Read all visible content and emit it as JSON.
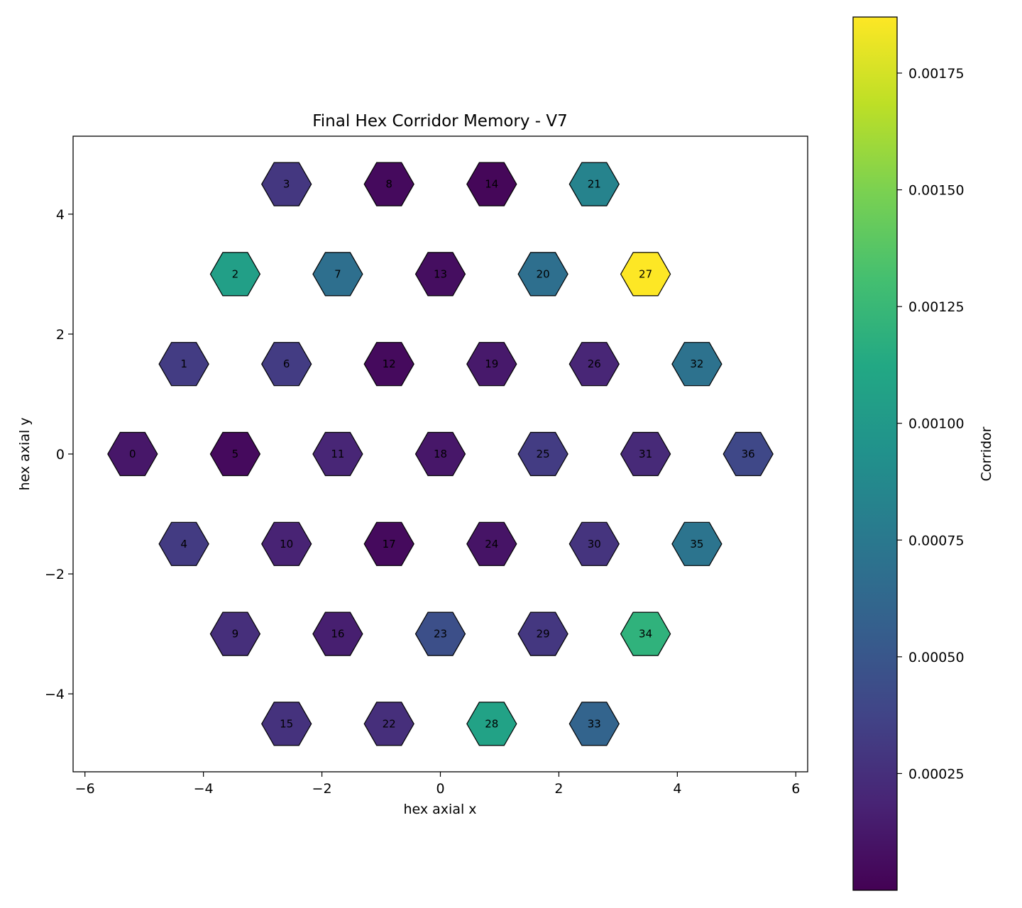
{
  "chart_data": {
    "type": "heatmap",
    "title": "Final Hex Corridor Memory - V7",
    "xlabel": "hex axial x",
    "ylabel": "hex axial y",
    "xlim": [
      -6.2,
      6.2
    ],
    "ylim": [
      -5.3,
      5.3
    ],
    "xticks": [
      -6,
      -4,
      -2,
      0,
      2,
      4,
      6
    ],
    "yticks": [
      -4,
      -2,
      0,
      2,
      4
    ],
    "xtick_labels": [
      "−6",
      "−4",
      "−2",
      "0",
      "2",
      "4",
      "6"
    ],
    "ytick_labels": [
      "−4",
      "−2",
      "0",
      "2",
      "4"
    ],
    "colorbar": {
      "label": "Corridor",
      "range": [
        0.0,
        0.00187
      ],
      "ticks": [
        0.00025,
        0.0005,
        0.00075,
        0.001,
        0.00125,
        0.0015,
        0.00175
      ],
      "tick_labels": [
        "0.00025",
        "0.00050",
        "0.00075",
        "0.00100",
        "0.00125",
        "0.00150",
        "0.00175"
      ],
      "colormap": "viridis"
    },
    "cells": [
      {
        "id": "0",
        "x": -5.196,
        "y": 0.0,
        "value": 0.00012
      },
      {
        "id": "1",
        "x": -4.33,
        "y": 1.5,
        "value": 0.00033
      },
      {
        "id": "2",
        "x": -3.464,
        "y": 3.0,
        "value": 0.00105
      },
      {
        "id": "3",
        "x": -2.598,
        "y": 4.5,
        "value": 0.0003
      },
      {
        "id": "4",
        "x": -4.33,
        "y": -1.5,
        "value": 0.00032
      },
      {
        "id": "5",
        "x": -3.464,
        "y": 0.0,
        "value": 5e-05
      },
      {
        "id": "6",
        "x": -2.598,
        "y": 1.5,
        "value": 0.00033
      },
      {
        "id": "7",
        "x": -1.732,
        "y": 3.0,
        "value": 0.00068
      },
      {
        "id": "8",
        "x": -0.866,
        "y": 4.5,
        "value": 5e-05
      },
      {
        "id": "9",
        "x": -3.464,
        "y": -3.0,
        "value": 0.00025
      },
      {
        "id": "10",
        "x": -2.598,
        "y": -1.5,
        "value": 0.00018
      },
      {
        "id": "11",
        "x": -1.732,
        "y": 0.0,
        "value": 0.0002
      },
      {
        "id": "12",
        "x": -0.866,
        "y": 1.5,
        "value": 5e-05
      },
      {
        "id": "13",
        "x": 0.0,
        "y": 3.0,
        "value": 7e-05
      },
      {
        "id": "14",
        "x": 0.866,
        "y": 4.5,
        "value": 3e-05
      },
      {
        "id": "15",
        "x": -2.598,
        "y": -4.5,
        "value": 0.00027
      },
      {
        "id": "16",
        "x": -1.732,
        "y": -3.0,
        "value": 0.00016
      },
      {
        "id": "17",
        "x": -0.866,
        "y": -1.5,
        "value": 5e-05
      },
      {
        "id": "18",
        "x": 0.0,
        "y": 0.0,
        "value": 0.00012
      },
      {
        "id": "19",
        "x": 0.866,
        "y": 1.5,
        "value": 0.00013
      },
      {
        "id": "20",
        "x": 1.732,
        "y": 3.0,
        "value": 0.00068
      },
      {
        "id": "21",
        "x": 2.598,
        "y": 4.5,
        "value": 0.00083
      },
      {
        "id": "22",
        "x": -0.866,
        "y": -4.5,
        "value": 0.00025
      },
      {
        "id": "23",
        "x": 0.0,
        "y": -3.0,
        "value": 0.00045
      },
      {
        "id": "24",
        "x": 0.866,
        "y": -1.5,
        "value": 0.0001
      },
      {
        "id": "25",
        "x": 1.732,
        "y": 0.0,
        "value": 0.00033
      },
      {
        "id": "26",
        "x": 2.598,
        "y": 1.5,
        "value": 0.0002
      },
      {
        "id": "27",
        "x": 3.464,
        "y": 3.0,
        "value": 0.00187
      },
      {
        "id": "28",
        "x": 0.866,
        "y": -4.5,
        "value": 0.00107
      },
      {
        "id": "29",
        "x": 1.732,
        "y": -3.0,
        "value": 0.0003
      },
      {
        "id": "30",
        "x": 2.598,
        "y": -1.5,
        "value": 0.00028
      },
      {
        "id": "31",
        "x": 3.464,
        "y": 0.0,
        "value": 0.00022
      },
      {
        "id": "32",
        "x": 4.33,
        "y": 1.5,
        "value": 0.0007
      },
      {
        "id": "33",
        "x": 2.598,
        "y": -4.5,
        "value": 0.0006
      },
      {
        "id": "34",
        "x": 3.464,
        "y": -3.0,
        "value": 0.0012
      },
      {
        "id": "35",
        "x": 4.33,
        "y": -1.5,
        "value": 0.00072
      },
      {
        "id": "36",
        "x": 5.196,
        "y": 0.0,
        "value": 0.0004
      }
    ]
  }
}
